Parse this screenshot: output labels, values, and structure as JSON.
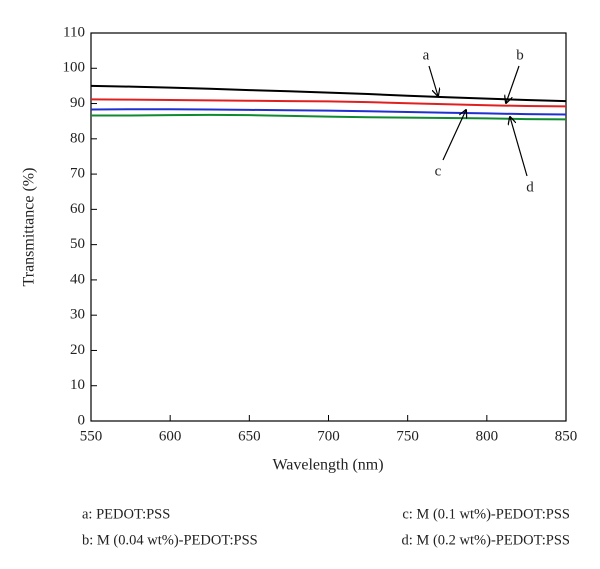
{
  "chart_data": {
    "type": "line",
    "xlabel": "Wavelength (nm)",
    "ylabel": "Transmittance (%)",
    "x": [
      550,
      575,
      600,
      625,
      650,
      675,
      700,
      725,
      750,
      775,
      800,
      825,
      850
    ],
    "series": [
      {
        "name": "a: PEDOT:PSS",
        "color": "#000000",
        "values": [
          95,
          94.8,
          94.5,
          94.2,
          93.8,
          93.5,
          93.1,
          92.7,
          92.2,
          91.8,
          91.4,
          91.0,
          90.7
        ]
      },
      {
        "name": "b: M (0.04 wt%)-PEDOT:PSS",
        "color": "#e02020",
        "values": [
          91.2,
          91.1,
          91.0,
          90.9,
          90.8,
          90.7,
          90.6,
          90.4,
          90.1,
          89.8,
          89.5,
          89.3,
          89.2
        ]
      },
      {
        "name": "c: M (0.1 wt%)-PEDOT:PSS",
        "color": "#2030d0",
        "values": [
          88.3,
          88.4,
          88.4,
          88.3,
          88.2,
          88.1,
          88.0,
          87.8,
          87.6,
          87.4,
          87.2,
          87.0,
          86.9
        ]
      },
      {
        "name": "d: M (0.2 wt%)-PEDOT:PSS",
        "color": "#108a30",
        "values": [
          86.6,
          86.6,
          86.7,
          86.8,
          86.7,
          86.5,
          86.3,
          86.1,
          86.0,
          85.9,
          85.8,
          85.6,
          85.5
        ]
      }
    ],
    "annotations": [
      "a",
      "b",
      "c",
      "d"
    ],
    "xlim": [
      550,
      850
    ],
    "xticks": [
      550,
      600,
      650,
      700,
      750,
      800,
      850
    ],
    "ylim": [
      0,
      110
    ],
    "yticks": [
      0,
      10,
      20,
      30,
      40,
      50,
      60,
      70,
      80,
      90,
      100,
      110
    ]
  }
}
